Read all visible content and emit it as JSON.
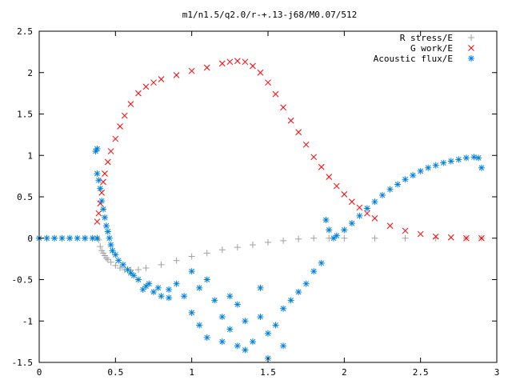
{
  "chart_data": {
    "type": "scatter",
    "title": "m1/n1.5/q2.0/r-+.13-j68/M0.07/512",
    "xlabel": "",
    "ylabel": "",
    "xlim": [
      0,
      3
    ],
    "ylim": [
      -1.5,
      2.5
    ],
    "xticks": [
      "0",
      "0.5",
      "1",
      "1.5",
      "2",
      "2.5",
      "3"
    ],
    "yticks": [
      "-1.5",
      "-1",
      "-0.5",
      "0",
      "0.5",
      "1",
      "1.5",
      "2",
      "2.5"
    ],
    "grid": false,
    "legend_position": "top-right",
    "series": [
      {
        "name": "R stress/E",
        "marker": "plus",
        "color": "#a0a0a0",
        "points": [
          [
            0.0,
            0.0
          ],
          [
            0.1,
            0.0
          ],
          [
            0.2,
            0.0
          ],
          [
            0.3,
            0.0
          ],
          [
            0.35,
            0.0
          ],
          [
            0.38,
            0.0
          ],
          [
            0.39,
            -0.02
          ],
          [
            0.4,
            -0.1
          ],
          [
            0.41,
            -0.15
          ],
          [
            0.42,
            -0.18
          ],
          [
            0.43,
            -0.21
          ],
          [
            0.44,
            -0.24
          ],
          [
            0.45,
            -0.26
          ],
          [
            0.47,
            -0.29
          ],
          [
            0.5,
            -0.33
          ],
          [
            0.53,
            -0.36
          ],
          [
            0.56,
            -0.38
          ],
          [
            0.6,
            -0.385
          ],
          [
            0.65,
            -0.38
          ],
          [
            0.7,
            -0.36
          ],
          [
            0.8,
            -0.32
          ],
          [
            0.9,
            -0.27
          ],
          [
            1.0,
            -0.22
          ],
          [
            1.1,
            -0.18
          ],
          [
            1.2,
            -0.14
          ],
          [
            1.3,
            -0.11
          ],
          [
            1.4,
            -0.08
          ],
          [
            1.5,
            -0.05
          ],
          [
            1.6,
            -0.03
          ],
          [
            1.7,
            -0.01
          ],
          [
            1.8,
            0.0
          ],
          [
            1.9,
            0.0
          ],
          [
            2.0,
            0.0
          ],
          [
            2.2,
            0.0
          ],
          [
            2.4,
            0.0
          ],
          [
            2.6,
            0.0
          ],
          [
            2.8,
            0.0
          ],
          [
            2.9,
            0.0
          ]
        ]
      },
      {
        "name": "G work/E",
        "marker": "cross",
        "color": "#ff0000",
        "points": [
          [
            0.38,
            0.2
          ],
          [
            0.39,
            0.3
          ],
          [
            0.4,
            0.42
          ],
          [
            0.41,
            0.55
          ],
          [
            0.42,
            0.68
          ],
          [
            0.43,
            0.78
          ],
          [
            0.45,
            0.92
          ],
          [
            0.47,
            1.05
          ],
          [
            0.5,
            1.2
          ],
          [
            0.53,
            1.35
          ],
          [
            0.56,
            1.48
          ],
          [
            0.6,
            1.62
          ],
          [
            0.65,
            1.75
          ],
          [
            0.7,
            1.83
          ],
          [
            0.75,
            1.88
          ],
          [
            0.8,
            1.92
          ],
          [
            0.9,
            1.97
          ],
          [
            1.0,
            2.02
          ],
          [
            1.1,
            2.06
          ],
          [
            1.2,
            2.11
          ],
          [
            1.25,
            2.13
          ],
          [
            1.3,
            2.14
          ],
          [
            1.35,
            2.13
          ],
          [
            1.4,
            2.08
          ],
          [
            1.45,
            2.0
          ],
          [
            1.5,
            1.88
          ],
          [
            1.55,
            1.74
          ],
          [
            1.6,
            1.58
          ],
          [
            1.65,
            1.42
          ],
          [
            1.7,
            1.28
          ],
          [
            1.75,
            1.13
          ],
          [
            1.8,
            0.98
          ],
          [
            1.85,
            0.86
          ],
          [
            1.9,
            0.74
          ],
          [
            1.95,
            0.63
          ],
          [
            2.0,
            0.53
          ],
          [
            2.05,
            0.44
          ],
          [
            2.1,
            0.37
          ],
          [
            2.15,
            0.3
          ],
          [
            2.2,
            0.24
          ],
          [
            2.3,
            0.15
          ],
          [
            2.4,
            0.09
          ],
          [
            2.5,
            0.05
          ],
          [
            2.6,
            0.02
          ],
          [
            2.7,
            0.01
          ],
          [
            2.8,
            0.0
          ],
          [
            2.9,
            0.0
          ]
        ]
      },
      {
        "name": "Acoustic flux/E",
        "marker": "star",
        "color": "#0080e0",
        "points": [
          [
            0.0,
            0.0
          ],
          [
            0.05,
            0.0
          ],
          [
            0.1,
            0.0
          ],
          [
            0.15,
            0.0
          ],
          [
            0.2,
            0.0
          ],
          [
            0.25,
            0.0
          ],
          [
            0.3,
            0.0
          ],
          [
            0.35,
            0.0
          ],
          [
            0.38,
            0.0
          ],
          [
            0.37,
            1.05
          ],
          [
            0.38,
            1.08
          ],
          [
            0.38,
            0.78
          ],
          [
            0.39,
            0.7
          ],
          [
            0.4,
            0.6
          ],
          [
            0.41,
            0.45
          ],
          [
            0.42,
            0.35
          ],
          [
            0.43,
            0.25
          ],
          [
            0.44,
            0.15
          ],
          [
            0.45,
            0.08
          ],
          [
            0.46,
            0.0
          ],
          [
            0.47,
            -0.08
          ],
          [
            0.48,
            -0.15
          ],
          [
            0.5,
            -0.2
          ],
          [
            0.52,
            -0.27
          ],
          [
            0.55,
            -0.32
          ],
          [
            0.58,
            -0.38
          ],
          [
            0.6,
            -0.42
          ],
          [
            0.62,
            -0.45
          ],
          [
            0.65,
            -0.5
          ],
          [
            0.7,
            -0.58
          ],
          [
            0.75,
            -0.65
          ],
          [
            0.8,
            -0.7
          ],
          [
            0.85,
            -0.72
          ],
          [
            0.68,
            -0.62
          ],
          [
            0.72,
            -0.55
          ],
          [
            0.78,
            -0.6
          ],
          [
            0.85,
            -0.62
          ],
          [
            0.9,
            -0.55
          ],
          [
            0.95,
            -0.7
          ],
          [
            1.0,
            -0.9
          ],
          [
            1.05,
            -1.05
          ],
          [
            1.1,
            -1.2
          ],
          [
            1.15,
            -0.75
          ],
          [
            1.2,
            -0.95
          ],
          [
            1.25,
            -1.1
          ],
          [
            1.3,
            -0.8
          ],
          [
            1.35,
            -1.0
          ],
          [
            1.4,
            -1.25
          ],
          [
            1.45,
            -0.95
          ],
          [
            1.5,
            -1.15
          ],
          [
            1.55,
            -1.05
          ],
          [
            1.6,
            -0.85
          ],
          [
            1.65,
            -0.75
          ],
          [
            1.7,
            -0.65
          ],
          [
            1.75,
            -0.55
          ],
          [
            1.8,
            -0.4
          ],
          [
            1.85,
            -0.3
          ],
          [
            1.88,
            0.22
          ],
          [
            1.9,
            0.1
          ],
          [
            1.93,
            0.0
          ],
          [
            1.95,
            0.03
          ],
          [
            2.0,
            0.1
          ],
          [
            2.05,
            0.18
          ],
          [
            2.1,
            0.27
          ],
          [
            2.15,
            0.36
          ],
          [
            2.2,
            0.44
          ],
          [
            2.25,
            0.52
          ],
          [
            2.3,
            0.59
          ],
          [
            2.35,
            0.65
          ],
          [
            2.4,
            0.71
          ],
          [
            2.45,
            0.76
          ],
          [
            2.5,
            0.81
          ],
          [
            2.55,
            0.85
          ],
          [
            2.6,
            0.88
          ],
          [
            2.65,
            0.91
          ],
          [
            2.7,
            0.93
          ],
          [
            2.75,
            0.95
          ],
          [
            2.8,
            0.97
          ],
          [
            2.85,
            0.98
          ],
          [
            2.88,
            0.97
          ],
          [
            2.9,
            0.85
          ],
          [
            1.2,
            -1.25
          ],
          [
            1.3,
            -1.3
          ],
          [
            1.5,
            -1.45
          ],
          [
            1.35,
            -1.35
          ],
          [
            1.6,
            -1.3
          ],
          [
            1.0,
            -0.4
          ],
          [
            1.05,
            -0.6
          ],
          [
            1.1,
            -0.5
          ],
          [
            1.25,
            -0.7
          ],
          [
            1.45,
            -0.6
          ]
        ]
      }
    ]
  }
}
